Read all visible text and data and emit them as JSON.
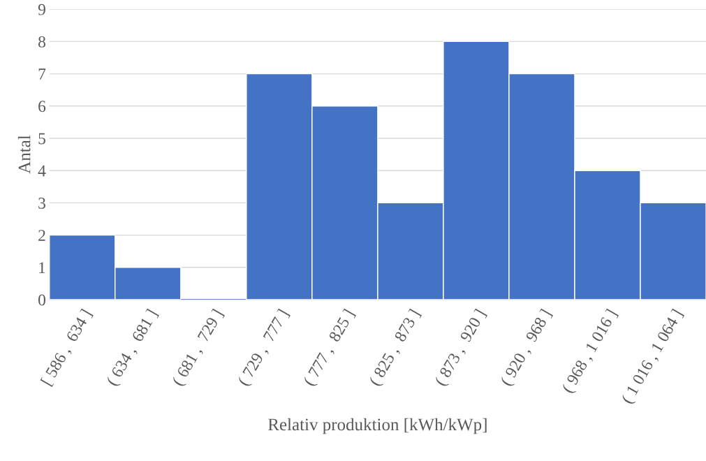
{
  "chart_data": {
    "type": "bar",
    "xlabel": "Relativ produktion [kWh/kWp]",
    "ylabel": "Antal",
    "categories": [
      "[ 586 ,  634 ]",
      "( 634 ,  681 ]",
      "( 681 ,  729 ]",
      "( 729 ,  777 ]",
      "( 777 ,  825 ]",
      "( 825 ,  873 ]",
      "( 873 ,  920 ]",
      "( 920 ,  968 ]",
      "( 968 , 1 016 ]",
      "( 1 016 , 1 064 ]"
    ],
    "values": [
      2,
      1,
      0,
      7,
      6,
      3,
      8,
      7,
      4,
      3
    ],
    "color": "#4472c4",
    "ylim": [
      0,
      9
    ],
    "yticks": [
      0,
      1,
      2,
      3,
      4,
      5,
      6,
      7,
      8,
      9
    ],
    "grid": "y"
  }
}
